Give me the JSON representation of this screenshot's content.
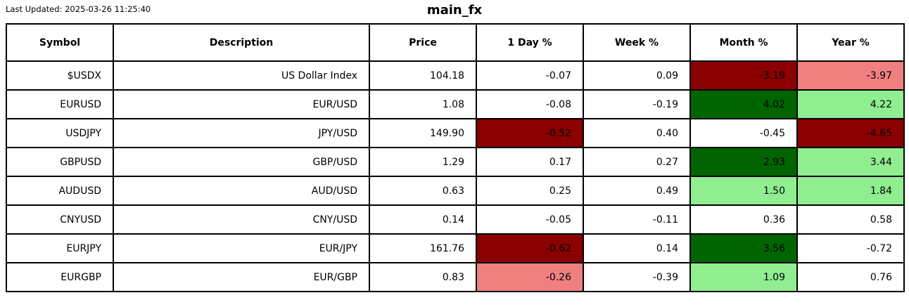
{
  "header": {
    "last_updated_label": "Last Updated: 2025-03-26 11:25:40",
    "title": "main_fx"
  },
  "colors": {
    "strong_negative_bg": "#8b0000",
    "mild_negative_bg": "#f08080",
    "strong_positive_bg": "#006400",
    "mild_positive_bg": "#90ee90",
    "default_bg": "#ffffff",
    "border": "#000000",
    "text": "#000000"
  },
  "chart_data": {
    "type": "table",
    "title": "main_fx",
    "columns": [
      "Symbol",
      "Description",
      "Price",
      "1 Day %",
      "Week %",
      "Month %",
      "Year %"
    ],
    "rows": [
      {
        "symbol": "$USDX",
        "description": "US Dollar Index",
        "price": "104.18",
        "changes": [
          {
            "value": "-0.07",
            "bg": "none"
          },
          {
            "value": "0.09",
            "bg": "none"
          },
          {
            "value": "-3.19",
            "bg": "strong_negative"
          },
          {
            "value": "-3.97",
            "bg": "mild_negative"
          }
        ]
      },
      {
        "symbol": "EURUSD",
        "description": "EUR/USD",
        "price": "1.08",
        "changes": [
          {
            "value": "-0.08",
            "bg": "none"
          },
          {
            "value": "-0.19",
            "bg": "none"
          },
          {
            "value": "4.02",
            "bg": "strong_positive"
          },
          {
            "value": "4.22",
            "bg": "mild_positive"
          }
        ]
      },
      {
        "symbol": "USDJPY",
        "description": "JPY/USD",
        "price": "149.90",
        "changes": [
          {
            "value": "-0.52",
            "bg": "strong_negative"
          },
          {
            "value": "0.40",
            "bg": "none"
          },
          {
            "value": "-0.45",
            "bg": "none"
          },
          {
            "value": "-4.65",
            "bg": "strong_negative"
          }
        ]
      },
      {
        "symbol": "GBPUSD",
        "description": "GBP/USD",
        "price": "1.29",
        "changes": [
          {
            "value": "0.17",
            "bg": "none"
          },
          {
            "value": "0.27",
            "bg": "none"
          },
          {
            "value": "2.93",
            "bg": "strong_positive"
          },
          {
            "value": "3.44",
            "bg": "mild_positive"
          }
        ]
      },
      {
        "symbol": "AUDUSD",
        "description": "AUD/USD",
        "price": "0.63",
        "changes": [
          {
            "value": "0.25",
            "bg": "none"
          },
          {
            "value": "0.49",
            "bg": "none"
          },
          {
            "value": "1.50",
            "bg": "mild_positive"
          },
          {
            "value": "1.84",
            "bg": "mild_positive"
          }
        ]
      },
      {
        "symbol": "CNYUSD",
        "description": "CNY/USD",
        "price": "0.14",
        "changes": [
          {
            "value": "-0.05",
            "bg": "none"
          },
          {
            "value": "-0.11",
            "bg": "none"
          },
          {
            "value": "0.36",
            "bg": "none"
          },
          {
            "value": "0.58",
            "bg": "none"
          }
        ]
      },
      {
        "symbol": "EURJPY",
        "description": "EUR/JPY",
        "price": "161.76",
        "changes": [
          {
            "value": "-0.62",
            "bg": "strong_negative"
          },
          {
            "value": "0.14",
            "bg": "none"
          },
          {
            "value": "3.56",
            "bg": "strong_positive"
          },
          {
            "value": "-0.72",
            "bg": "none"
          }
        ]
      },
      {
        "symbol": "EURGBP",
        "description": "EUR/GBP",
        "price": "0.83",
        "changes": [
          {
            "value": "-0.26",
            "bg": "mild_negative"
          },
          {
            "value": "-0.39",
            "bg": "none"
          },
          {
            "value": "1.09",
            "bg": "mild_positive"
          },
          {
            "value": "0.76",
            "bg": "none"
          }
        ]
      }
    ]
  }
}
